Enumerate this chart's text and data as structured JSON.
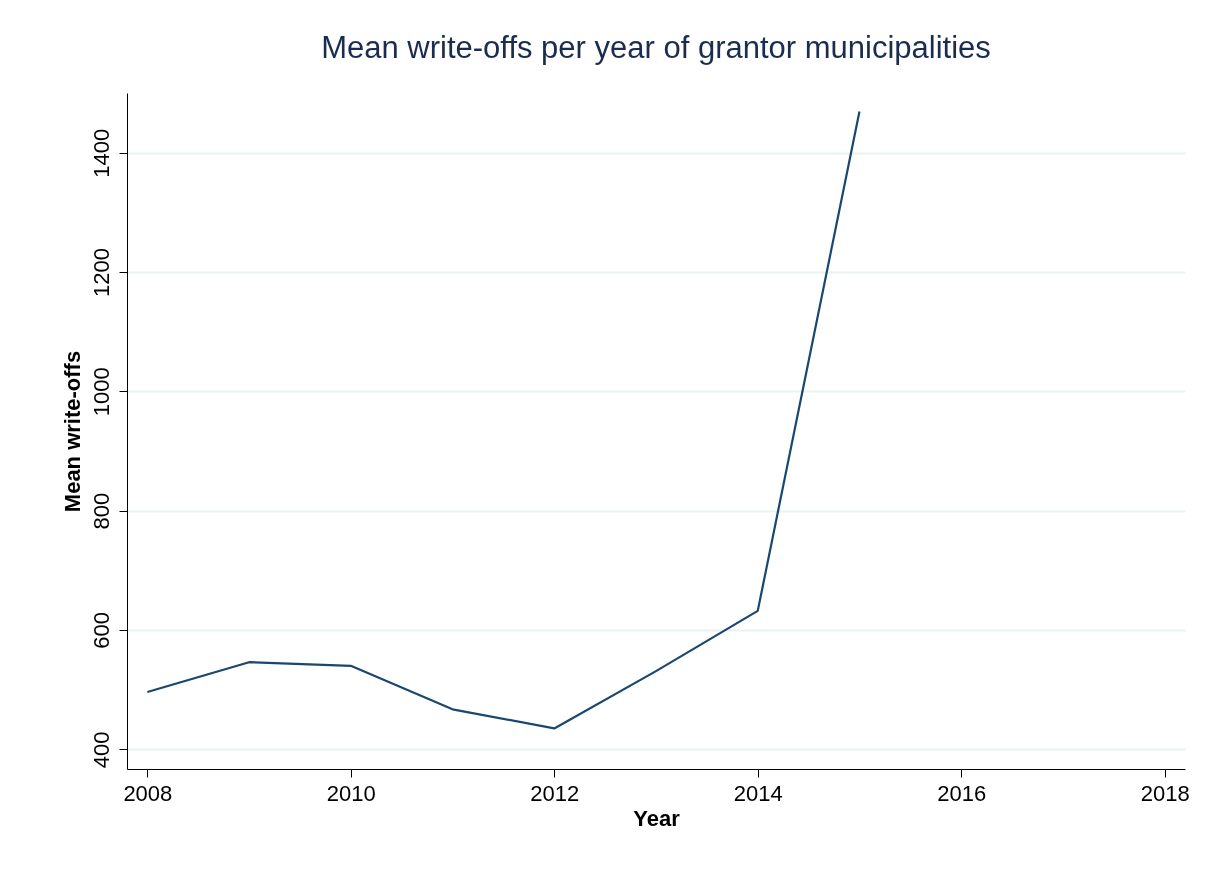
{
  "chart_data": {
    "type": "line",
    "title": "Mean write-offs per year of grantor municipalities",
    "xlabel": "Year",
    "ylabel": "Mean write-offs",
    "x": [
      2008,
      2009,
      2010,
      2011,
      2012,
      2013,
      2014,
      2015
    ],
    "series": [
      {
        "color": "#1a476f",
        "values": [
          496,
          546,
          540,
          467,
          435,
          531,
          632,
          1469
        ]
      }
    ],
    "xlim": [
      2007.8,
      2018.2
    ],
    "xticks": [
      2008,
      2010,
      2012,
      2014,
      2016,
      2018
    ],
    "ylim": [
      367,
      1500
    ],
    "yticks": [
      400,
      600,
      800,
      1000,
      1200,
      1400
    ],
    "grid": "y"
  }
}
